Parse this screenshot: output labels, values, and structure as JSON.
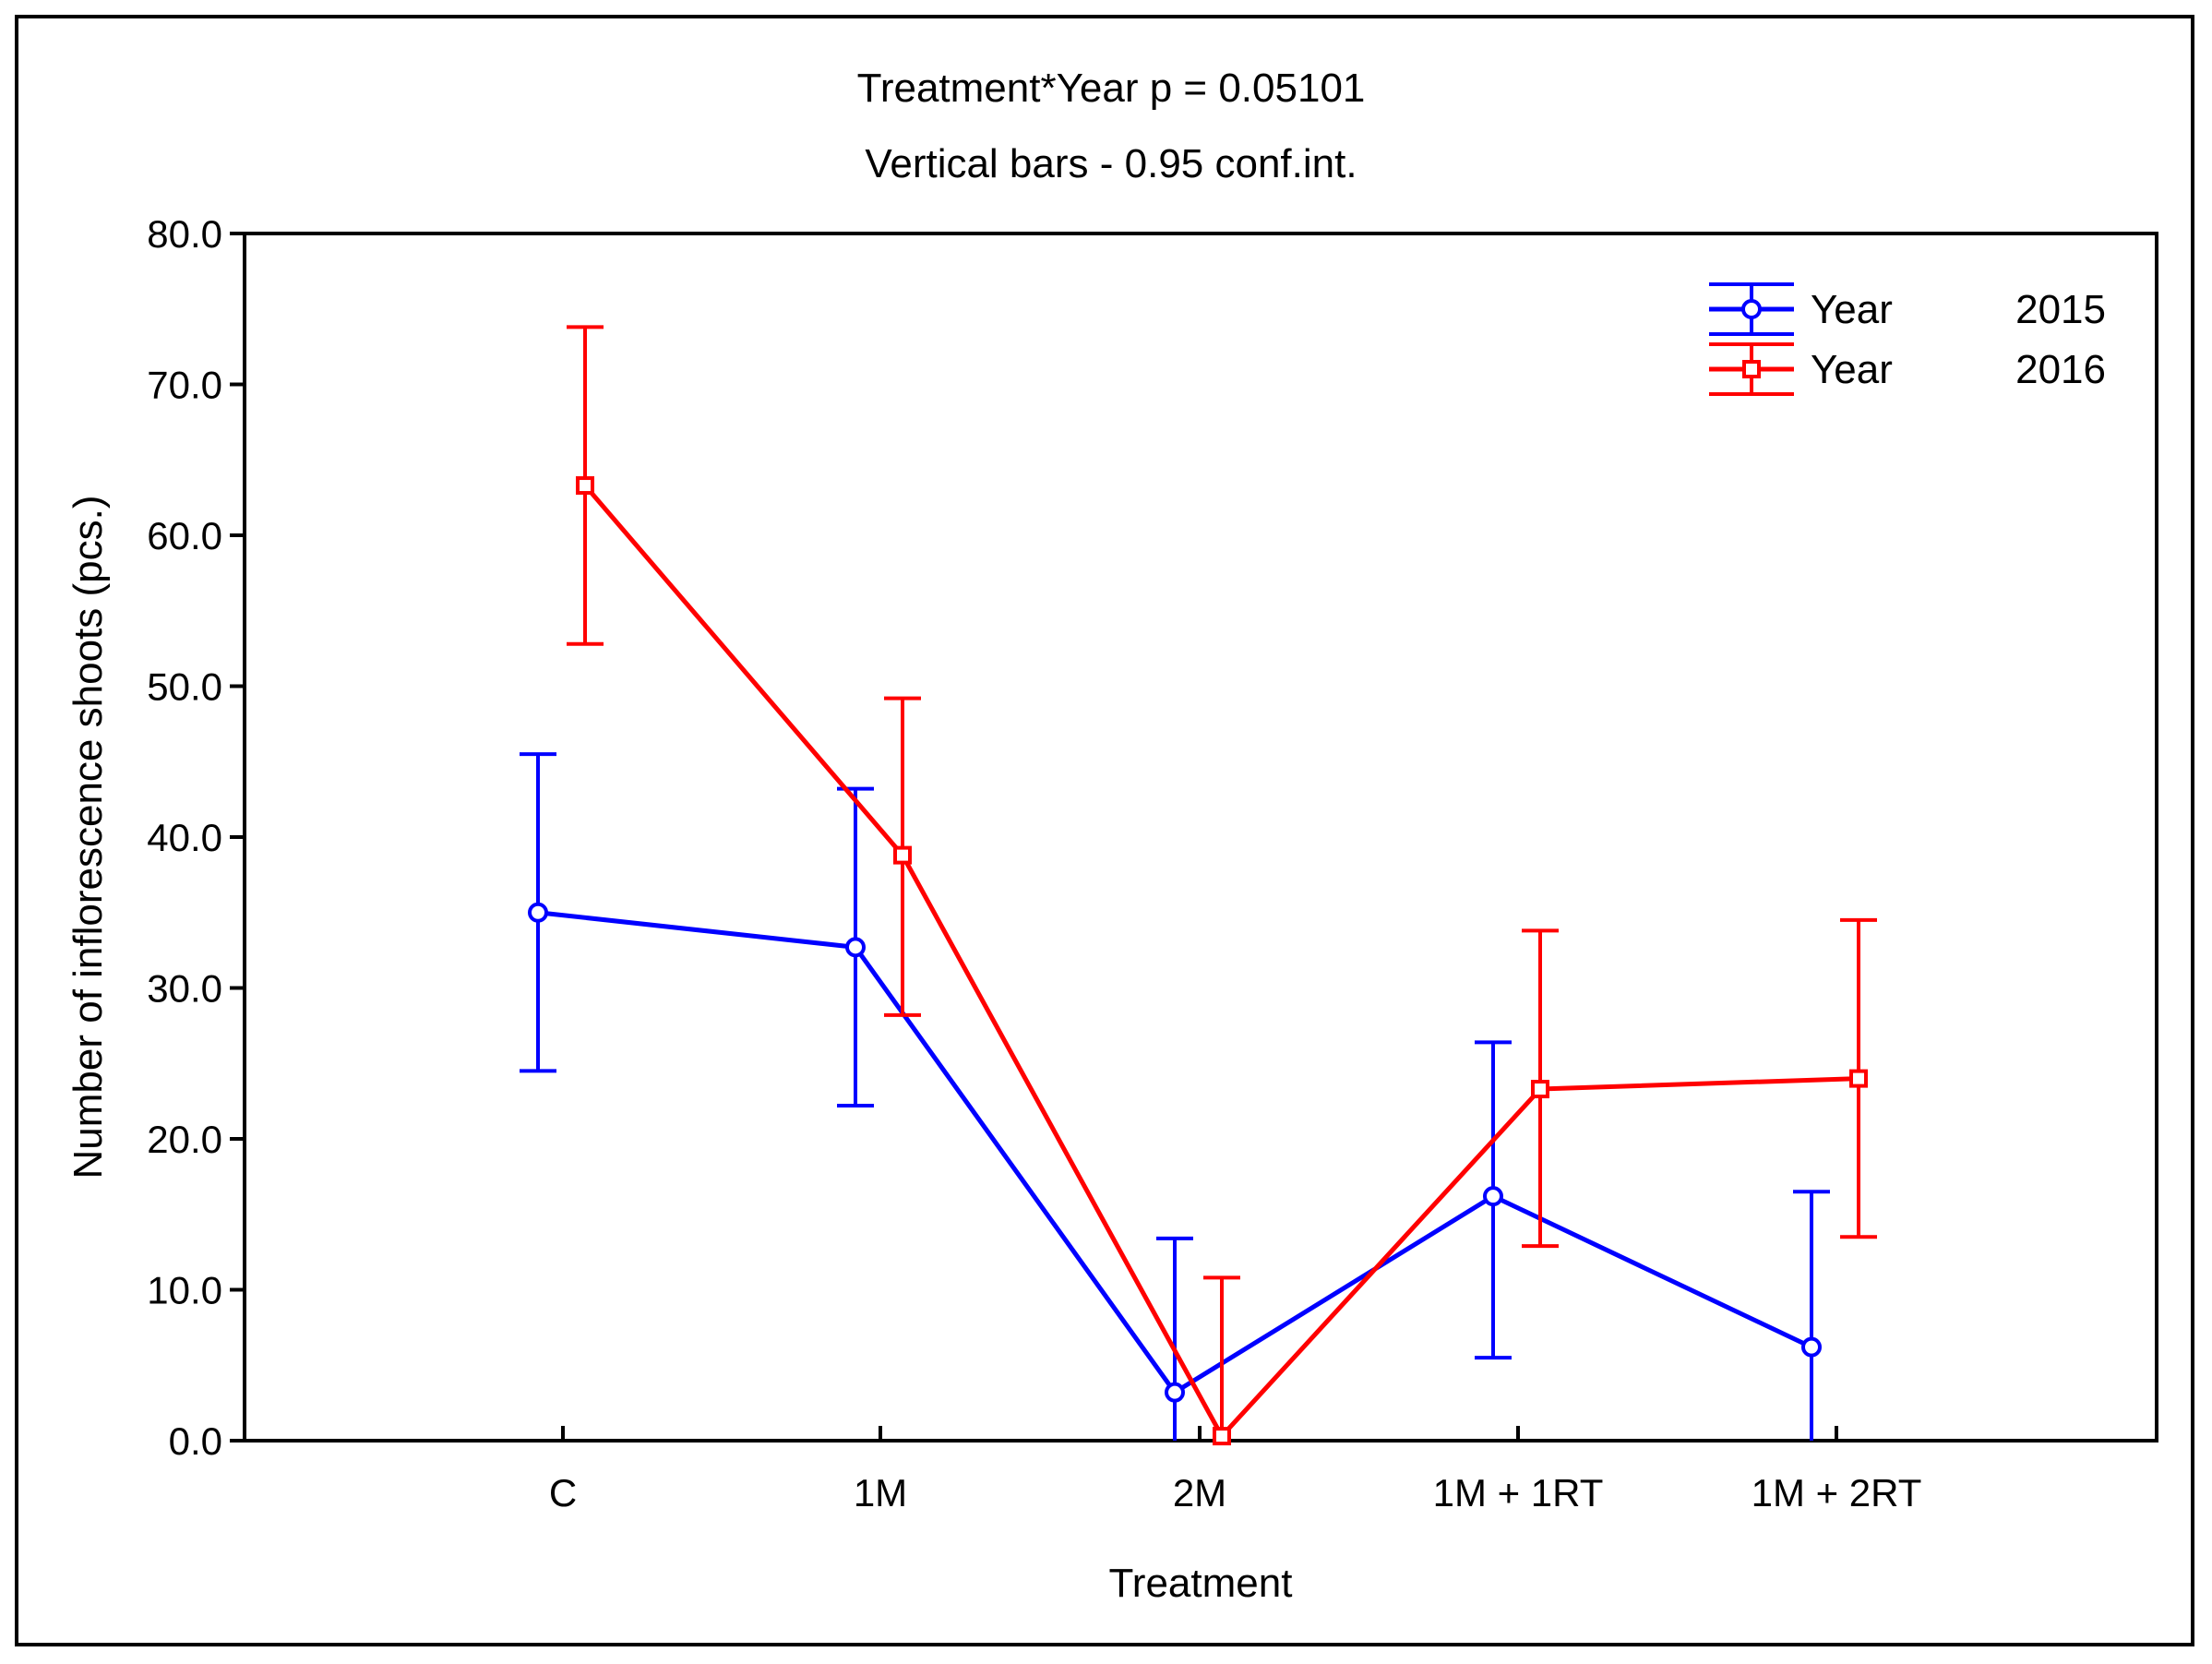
{
  "chart_data": {
    "type": "line",
    "title": "Treatment*Year p = 0.05101",
    "subtitle": "Vertical bars - 0.95 conf.int.",
    "xlabel": "Treatment",
    "ylabel": "Number of inflorescence shoots (pcs.)",
    "categories": [
      "C",
      "1M",
      "2M",
      "1M + 1RT",
      "1M + 2RT"
    ],
    "ylim": [
      0,
      80
    ],
    "yticks": [
      "0.0",
      "10.0",
      "20.0",
      "30.0",
      "40.0",
      "50.0",
      "60.0",
      "70.0",
      "80.0"
    ],
    "series": [
      {
        "name": "Year",
        "year": "2015",
        "color": "#0000ff",
        "marker": "circle",
        "values": [
          35.0,
          32.7,
          3.2,
          16.2,
          6.2
        ],
        "ci_low": [
          24.5,
          22.2,
          0.0,
          5.5,
          0.0
        ],
        "ci_high": [
          45.5,
          43.2,
          13.4,
          26.4,
          16.5
        ]
      },
      {
        "name": "Year",
        "year": "2016",
        "color": "#ff0000",
        "marker": "square",
        "values": [
          63.3,
          38.8,
          0.3,
          23.3,
          24.0
        ],
        "ci_low": [
          52.8,
          28.2,
          0.0,
          12.9,
          13.5
        ],
        "ci_high": [
          73.8,
          49.2,
          10.8,
          33.8,
          34.5
        ]
      }
    ]
  }
}
